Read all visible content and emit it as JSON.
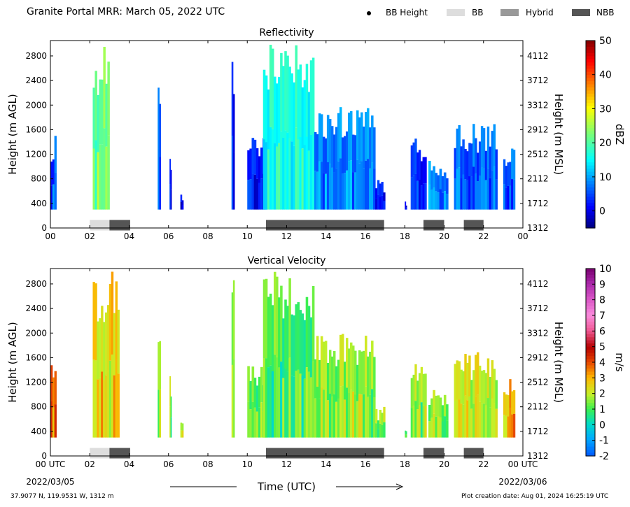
{
  "header": {
    "title": "Granite Portal MRR:  March 05, 2022 UTC",
    "legend": [
      {
        "label": "BB Height",
        "kind": "dot",
        "color": "#000000"
      },
      {
        "label": "BB",
        "kind": "box",
        "color": "#dddddd"
      },
      {
        "label": "Hybrid",
        "kind": "box",
        "color": "#999999"
      },
      {
        "label": "NBB",
        "kind": "box",
        "color": "#555555"
      }
    ]
  },
  "footer": {
    "location": "37.9077 N, 119.9531 W, 1312 m",
    "created": "Plot creation date: Aug 01, 2024 16:25:19 UTC"
  },
  "chart_data": [
    {
      "type": "heatmap",
      "title": "Reflectivity",
      "ylabel": "Height (m AGL)",
      "ylabel_right": "Height (m MSL)",
      "colorbar_label": "dBZ",
      "colorbar_ticks": [
        "50",
        "40",
        "30",
        "20",
        "10",
        "0"
      ],
      "colorbar_range": [
        -5,
        50
      ],
      "colorscale": "jet",
      "xlim": [
        0,
        24
      ],
      "ylim": [
        0,
        3050
      ],
      "xticks": [
        "00",
        "02",
        "04",
        "06",
        "08",
        "10",
        "12",
        "14",
        "16",
        "18",
        "20",
        "22",
        "00"
      ],
      "yticks": [
        "0",
        "400",
        "800",
        "1200",
        "1600",
        "2000",
        "2400",
        "2800"
      ],
      "yticks_right": [
        "1312",
        "1712",
        "2112",
        "2512",
        "2912",
        "3312",
        "3712",
        "4112"
      ],
      "precip_regions": [
        {
          "start": 0.0,
          "end": 0.3,
          "top": 1500,
          "value": 5
        },
        {
          "start": 2.15,
          "end": 3.0,
          "top": 3000,
          "value": 22
        },
        {
          "start": 5.45,
          "end": 5.6,
          "top": 2300,
          "value": 5
        },
        {
          "start": 6.05,
          "end": 6.15,
          "top": 1300,
          "value": 3
        },
        {
          "start": 6.6,
          "end": 6.75,
          "top": 600,
          "value": 2
        },
        {
          "start": 9.2,
          "end": 9.35,
          "top": 2900,
          "value": 2
        },
        {
          "start": 10.0,
          "end": 11.0,
          "top": 1500,
          "value": 2
        },
        {
          "start": 10.8,
          "end": 13.4,
          "top": 3000,
          "value": 16
        },
        {
          "start": 13.4,
          "end": 16.5,
          "top": 2000,
          "value": 8
        },
        {
          "start": 16.5,
          "end": 17.0,
          "top": 800,
          "value": 2
        },
        {
          "start": 18.0,
          "end": 18.1,
          "top": 500,
          "value": 1
        },
        {
          "start": 18.3,
          "end": 19.1,
          "top": 1500,
          "value": 3
        },
        {
          "start": 19.2,
          "end": 20.2,
          "top": 1100,
          "value": 8
        },
        {
          "start": 20.5,
          "end": 22.7,
          "top": 1700,
          "value": 6
        },
        {
          "start": 23.0,
          "end": 23.6,
          "top": 1300,
          "value": 6
        }
      ],
      "bb_bars": [
        {
          "start": 2.0,
          "end": 3.0,
          "kind": "BB"
        },
        {
          "start": 3.0,
          "end": 4.05,
          "kind": "NBB"
        },
        {
          "start": 10.95,
          "end": 16.95,
          "kind": "NBB"
        },
        {
          "start": 18.95,
          "end": 20.0,
          "kind": "NBB"
        },
        {
          "start": 21.0,
          "end": 22.0,
          "kind": "NBB"
        }
      ]
    },
    {
      "type": "heatmap",
      "title": "Vertical Velocity",
      "ylabel": "Height (m AGL)",
      "ylabel_right": "Height (m MSL)",
      "colorbar_label": "m/s",
      "colorbar_ticks": [
        "10",
        "9",
        "8",
        "7",
        "6",
        "5",
        "4",
        "3",
        "2",
        "1",
        "0",
        "-1",
        "-2"
      ],
      "colorbar_range": [
        -2,
        10
      ],
      "colorscale": "velocity",
      "xlim": [
        0,
        24
      ],
      "ylim": [
        0,
        3050
      ],
      "xticks": [
        "00 UTC",
        "02",
        "04",
        "06",
        "08",
        "10",
        "12",
        "14",
        "16",
        "18",
        "20",
        "22",
        "00 UTC"
      ],
      "xdates": [
        "2022/03/05",
        "2022/03/06"
      ],
      "xlabel": "Time (UTC)",
      "yticks": [
        "0",
        "400",
        "800",
        "1200",
        "1600",
        "2000",
        "2400",
        "2800"
      ],
      "yticks_right": [
        "1312",
        "1712",
        "2112",
        "2512",
        "2912",
        "3312",
        "3712",
        "4112"
      ],
      "precip_regions": [
        {
          "start": 0.0,
          "end": 0.3,
          "top": 1500,
          "value": 3.5
        },
        {
          "start": 2.15,
          "end": 3.5,
          "top": 3000,
          "value": 2.5
        },
        {
          "start": 5.45,
          "end": 5.6,
          "top": 2300,
          "value": 2
        },
        {
          "start": 6.05,
          "end": 6.15,
          "top": 1300,
          "value": 1.5
        },
        {
          "start": 6.6,
          "end": 6.75,
          "top": 600,
          "value": 1.5
        },
        {
          "start": 9.2,
          "end": 9.35,
          "top": 2900,
          "value": 1
        },
        {
          "start": 10.0,
          "end": 11.0,
          "top": 1500,
          "value": 1
        },
        {
          "start": 10.8,
          "end": 13.4,
          "top": 3000,
          "value": 1
        },
        {
          "start": 13.4,
          "end": 16.5,
          "top": 2000,
          "value": 1.5
        },
        {
          "start": 16.5,
          "end": 17.0,
          "top": 800,
          "value": 1.5
        },
        {
          "start": 18.0,
          "end": 18.1,
          "top": 500,
          "value": 1
        },
        {
          "start": 18.3,
          "end": 19.1,
          "top": 1500,
          "value": 1.5
        },
        {
          "start": 19.2,
          "end": 20.2,
          "top": 1100,
          "value": 1.5
        },
        {
          "start": 20.5,
          "end": 22.7,
          "top": 1700,
          "value": 2
        },
        {
          "start": 23.0,
          "end": 23.6,
          "top": 1300,
          "value": 3
        }
      ],
      "bb_bars": [
        {
          "start": 2.0,
          "end": 3.0,
          "kind": "BB"
        },
        {
          "start": 3.0,
          "end": 4.05,
          "kind": "NBB"
        },
        {
          "start": 10.95,
          "end": 16.95,
          "kind": "NBB"
        },
        {
          "start": 18.95,
          "end": 20.0,
          "kind": "NBB"
        },
        {
          "start": 21.0,
          "end": 22.0,
          "kind": "NBB"
        }
      ]
    }
  ]
}
